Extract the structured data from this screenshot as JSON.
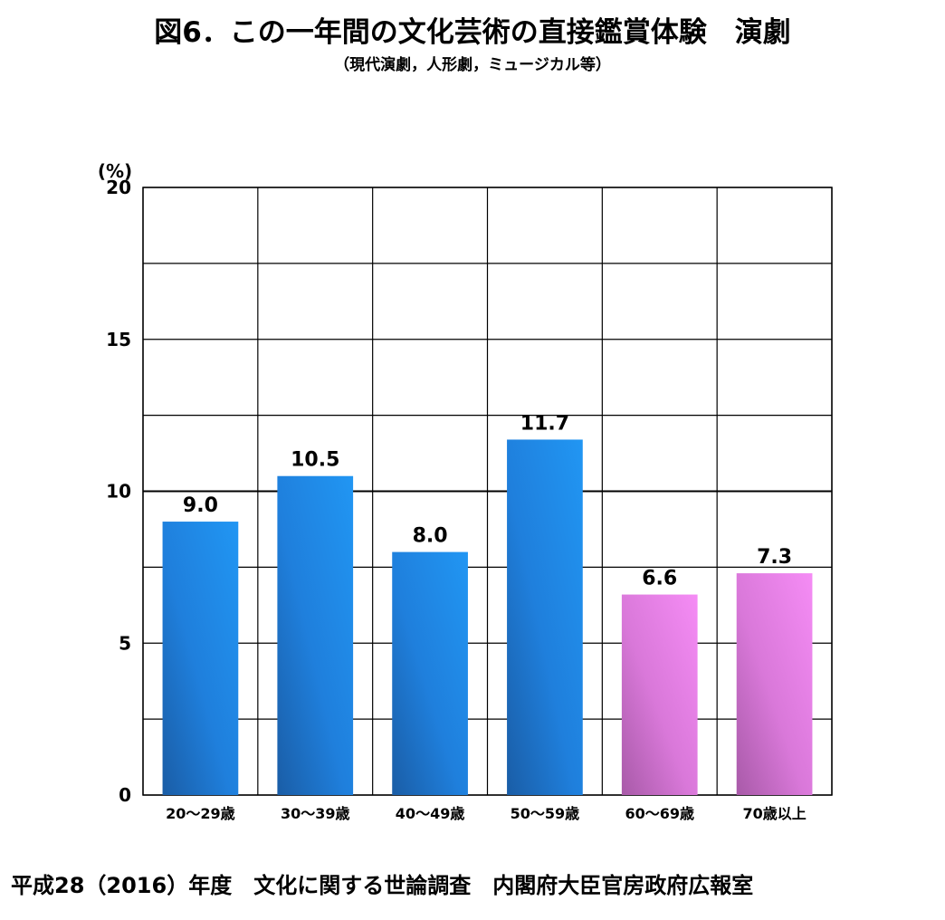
{
  "header": {
    "title": "図6．この一年間の文化芸術の直接鑑賞体験　演劇",
    "subtitle": "（現代演劇，人形劇，ミュージカル等）"
  },
  "footer": {
    "source": "平成28（2016）年度　文化に関する世論調査　内閣府大臣官房政府広報室"
  },
  "chart_data": {
    "type": "bar",
    "unit_label": "(%)",
    "categories": [
      "20～29歳",
      "30～39歳",
      "40～49歳",
      "50～59歳",
      "60～69歳",
      "70歳以上"
    ],
    "values": [
      9.0,
      10.5,
      8.0,
      11.7,
      6.6,
      7.3
    ],
    "value_labels": [
      "9.0",
      "10.5",
      "8.0",
      "11.7",
      "6.6",
      "7.3"
    ],
    "y_ticks": [
      0,
      5,
      10,
      15,
      20
    ],
    "ylim": [
      0,
      20
    ],
    "grid": true,
    "colors": {
      "blue_light": "#2196f3",
      "blue_dark": "#1a5da6",
      "pink_light": "#f58cf5",
      "pink_dark": "#a85aa8"
    },
    "bar_palette": [
      "blue",
      "blue",
      "blue",
      "blue",
      "pink",
      "pink"
    ]
  }
}
